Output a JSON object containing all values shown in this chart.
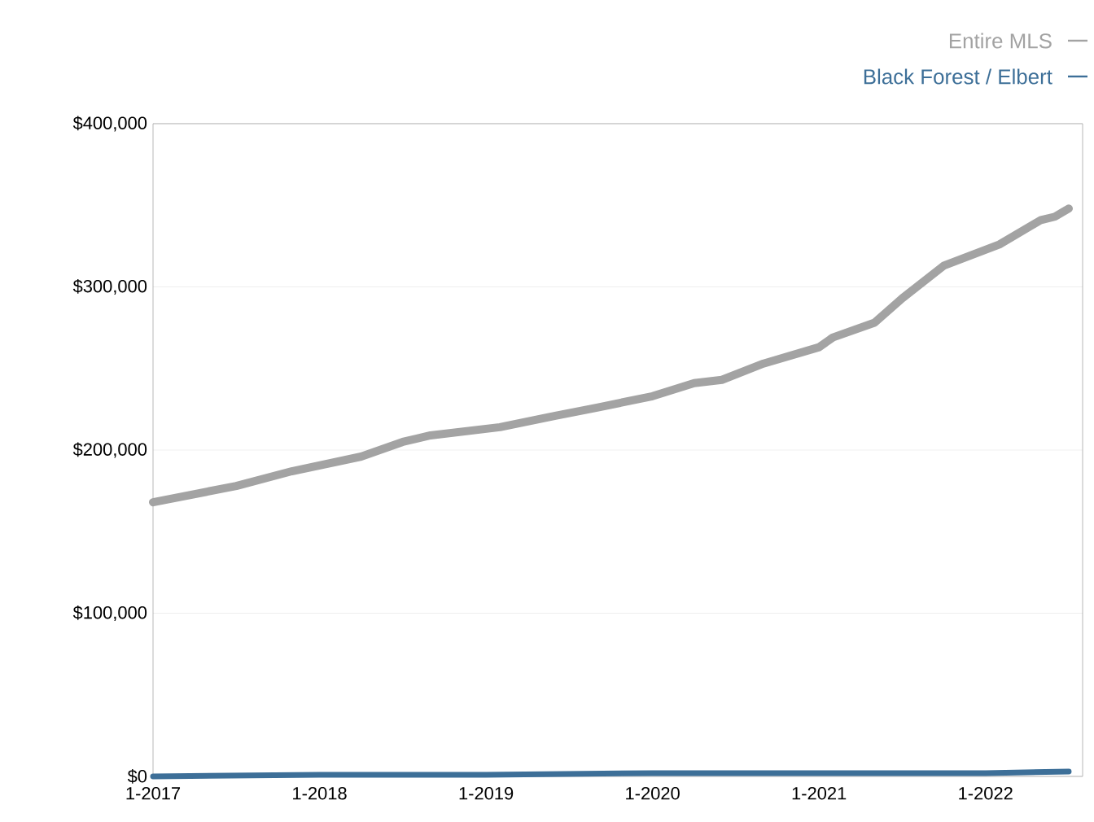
{
  "chart_data": {
    "type": "line",
    "xlim": [
      "2017-01",
      "2022-08"
    ],
    "ylim": [
      0,
      400000
    ],
    "xticks": [
      {
        "value": "2017-01",
        "label": "1-2017"
      },
      {
        "value": "2018-01",
        "label": "1-2018"
      },
      {
        "value": "2019-01",
        "label": "1-2019"
      },
      {
        "value": "2020-01",
        "label": "1-2020"
      },
      {
        "value": "2021-01",
        "label": "1-2021"
      },
      {
        "value": "2022-01",
        "label": "1-2022"
      }
    ],
    "yticks": [
      {
        "value": 0,
        "label": "$0"
      },
      {
        "value": 100000,
        "label": "$100,000"
      },
      {
        "value": 200000,
        "label": "$200,000"
      },
      {
        "value": 300000,
        "label": "$300,000"
      },
      {
        "value": 400000,
        "label": "$400,000"
      }
    ],
    "grid": "y",
    "legend": "top right",
    "marker": "none",
    "line_style": "solid",
    "series": [
      {
        "name": "Entire MLS",
        "color": "#a3a3a3",
        "x": [
          "2017-01",
          "2017-07",
          "2017-11",
          "2018-04",
          "2018-07",
          "2018-09",
          "2019-02",
          "2019-06",
          "2019-09",
          "2020-01",
          "2020-04",
          "2020-06",
          "2020-09",
          "2021-01",
          "2021-02",
          "2021-05",
          "2021-07",
          "2021-10",
          "2022-02",
          "2022-05",
          "2022-06",
          "2022-07"
        ],
        "values": [
          168000,
          178000,
          187000,
          196000,
          205000,
          209000,
          214000,
          221000,
          226000,
          233000,
          241000,
          243000,
          253000,
          263000,
          269000,
          278000,
          293000,
          313000,
          326000,
          341000,
          343000,
          348000
        ]
      },
      {
        "name": "Black Forest / Elbert",
        "color": "#3d6f98",
        "x": [
          "2017-01",
          "2018-01",
          "2019-01",
          "2020-01",
          "2021-01",
          "2022-01",
          "2022-07"
        ],
        "values": [
          0,
          1000,
          1000,
          2000,
          2000,
          2000,
          3000
        ]
      }
    ]
  }
}
